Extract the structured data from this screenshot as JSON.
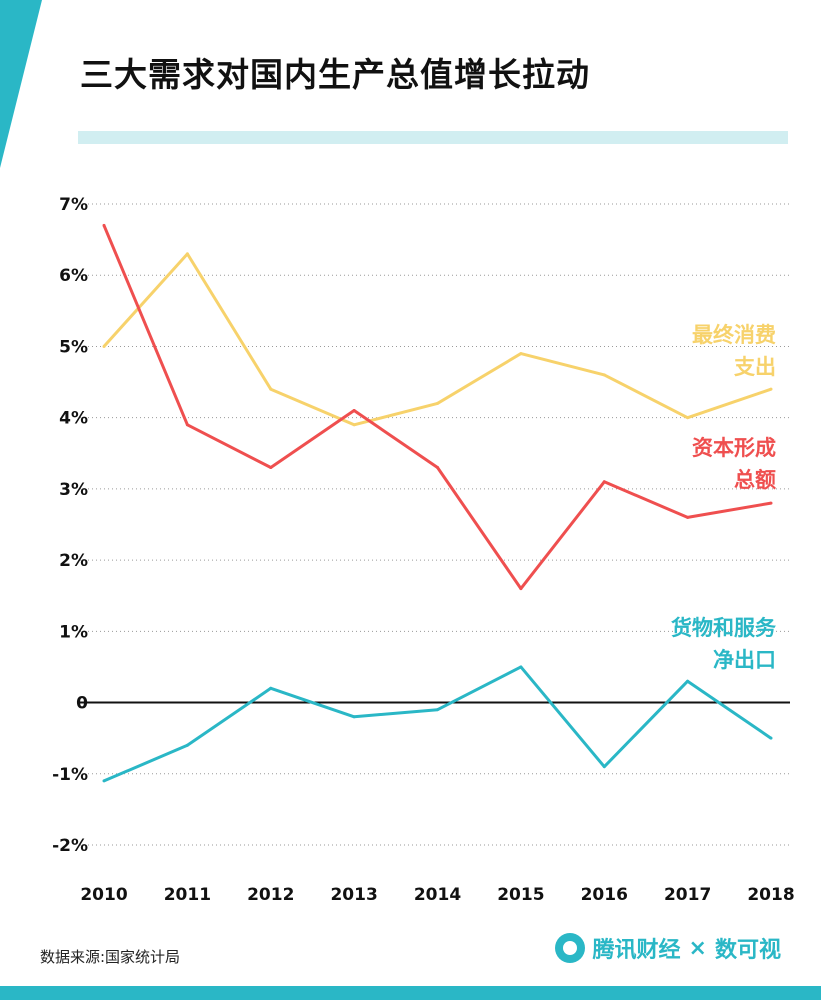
{
  "title": "三大需求对国内生产总值增长拉动",
  "source": "数据来源:国家统计局",
  "brand": {
    "name": "腾讯财经",
    "separator": "×",
    "partner": "数可视"
  },
  "colors": {
    "accent": "#2ab7c6",
    "consumption": "#f7d26b",
    "capital": "#ef4f4f",
    "net_exports": "#2ab7c6"
  },
  "chart_data": {
    "type": "line",
    "title": "三大需求对国内生产总值增长拉动",
    "xlabel": "",
    "ylabel": "",
    "categories": [
      "2010",
      "2011",
      "2012",
      "2013",
      "2014",
      "2015",
      "2016",
      "2017",
      "2018"
    ],
    "y_ticks": [
      {
        "value": 7,
        "label": "7%"
      },
      {
        "value": 6,
        "label": "6%"
      },
      {
        "value": 5,
        "label": "5%"
      },
      {
        "value": 4,
        "label": "4%"
      },
      {
        "value": 3,
        "label": "3%"
      },
      {
        "value": 2,
        "label": "2%"
      },
      {
        "value": 1,
        "label": "1%"
      },
      {
        "value": 0,
        "label": "0"
      },
      {
        "value": -1,
        "label": "-1%"
      },
      {
        "value": -2,
        "label": "-2%"
      }
    ],
    "ylim": [
      -2,
      7
    ],
    "grid": true,
    "series": [
      {
        "name": "最终消费支出",
        "label_lines": [
          "最终消费",
          "支出"
        ],
        "color": "#f7d26b",
        "values": [
          5.0,
          6.3,
          4.4,
          3.9,
          4.2,
          4.9,
          4.6,
          4.0,
          4.4
        ]
      },
      {
        "name": "资本形成总额",
        "label_lines": [
          "资本形成",
          "总额"
        ],
        "color": "#ef4f4f",
        "values": [
          6.7,
          3.9,
          3.3,
          4.1,
          3.3,
          1.6,
          3.1,
          2.6,
          2.8
        ]
      },
      {
        "name": "货物和服务净出口",
        "label_lines": [
          "货物和服务",
          "净出口"
        ],
        "color": "#2ab7c6",
        "values": [
          -1.1,
          -0.6,
          0.2,
          -0.2,
          -0.1,
          0.5,
          -0.9,
          0.3,
          -0.5
        ]
      }
    ]
  }
}
